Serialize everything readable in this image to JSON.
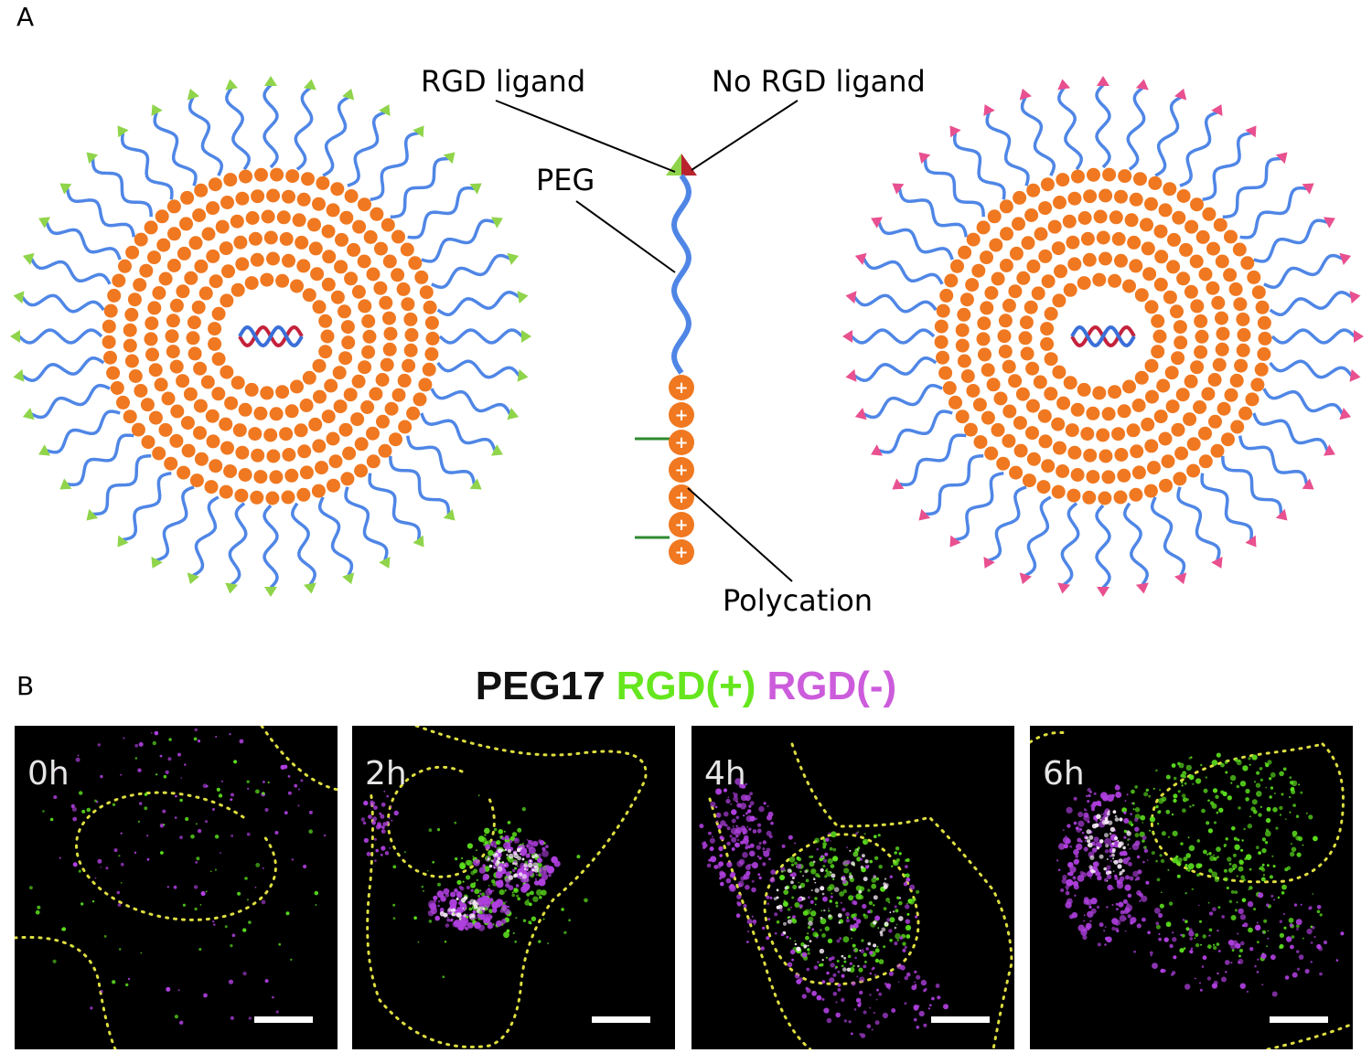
{
  "panel_a": {
    "letter": "A",
    "labels": {
      "rgd_ligand": "RGD ligand",
      "no_rgd_ligand": "No RGD ligand",
      "peg": "PEG",
      "polycation": "Polycation"
    },
    "micelles": [
      {
        "ligand_color": "#8fd44a",
        "ligand_name": "RGD(+)"
      },
      {
        "ligand_color": "#e8508f",
        "ligand_name": "RGD(-)"
      }
    ],
    "colors": {
      "peg": "#4f86e6",
      "polycation": "#f07820",
      "dna_red": "#c4223c",
      "dna_blue": "#3a6fd8"
    }
  },
  "panel_b": {
    "letter": "B",
    "title": [
      {
        "text": "PEG17",
        "color": "#111111"
      },
      {
        "text": "RGD(+)",
        "color": "#66e61e"
      },
      {
        "text": "RGD(-)",
        "color": "#cc5cdc"
      }
    ],
    "frames": [
      {
        "time": "0h"
      },
      {
        "time": "2h"
      },
      {
        "time": "4h"
      },
      {
        "time": "6h"
      }
    ],
    "colors": {
      "green": "#5ce01e",
      "magenta": "#b040e0",
      "white_overlap": "#f4e8f4",
      "outline": "#dede40"
    }
  }
}
